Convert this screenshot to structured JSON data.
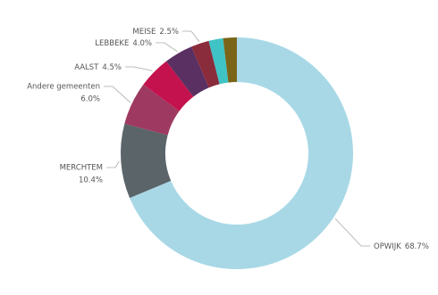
{
  "chart_data": {
    "type": "donut",
    "categories": [
      "OPWIJK",
      "MERCHTEM",
      "Andere gemeenten",
      "AALST",
      "LEBBEKE",
      "MEISE",
      null,
      null
    ],
    "values": [
      68.7,
      10.4,
      6.0,
      4.5,
      4.0,
      2.5,
      2.0,
      1.9
    ],
    "value_labels": [
      "68.7%",
      "10.4%",
      "6.0%",
      "4.5%",
      "4.0%",
      "2.5%",
      null,
      null
    ],
    "colors": [
      "#a8d8e6",
      "#5a6469",
      "#9e3a62",
      "#c4124e",
      "#5a2f62",
      "#8a2c3c",
      "#3fc3c4",
      "#7a6418"
    ]
  }
}
